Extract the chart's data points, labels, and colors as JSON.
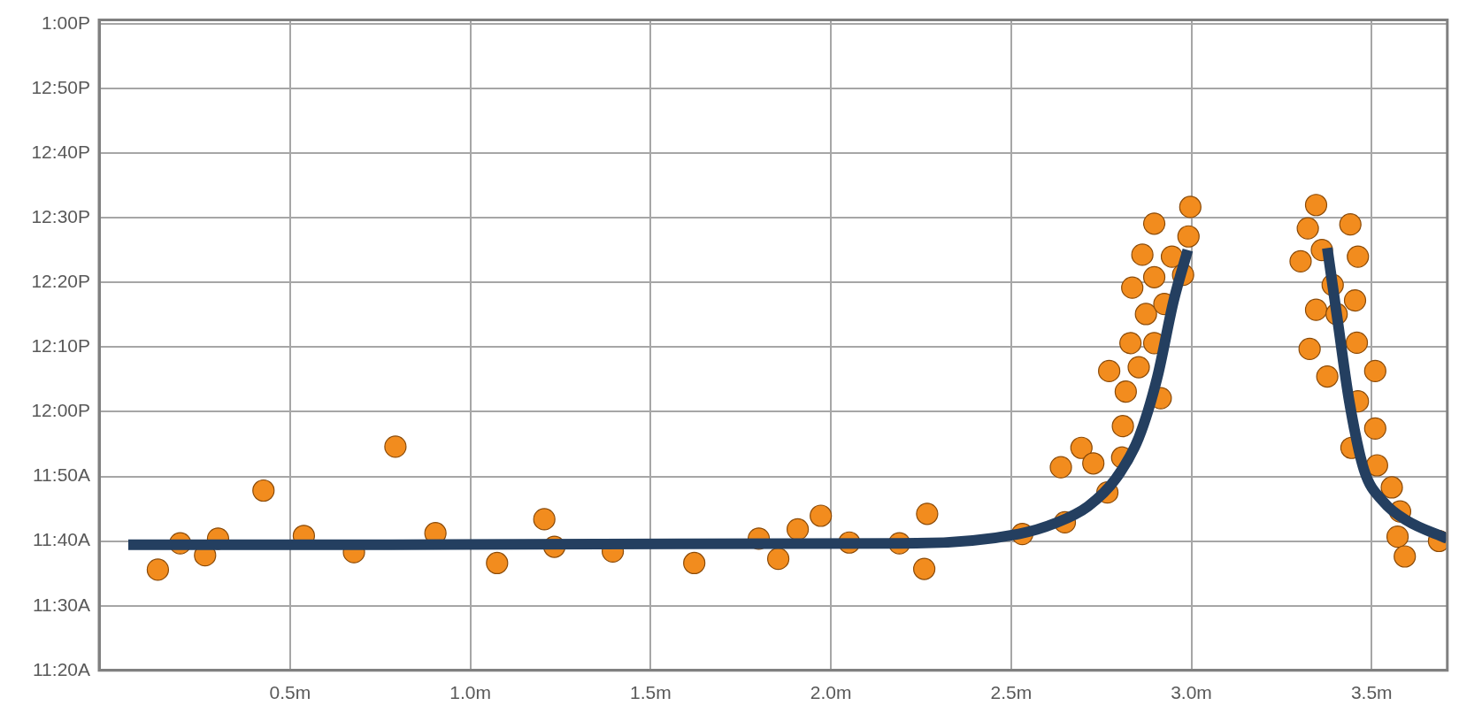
{
  "chart_data": {
    "type": "scatter",
    "xlim": [
      -0.03,
      3.71
    ],
    "ylim": [
      11.3333,
      13.01
    ],
    "xticks": [
      {
        "value": 0.5,
        "label": "0.5m"
      },
      {
        "value": 1,
        "label": "1.0m"
      },
      {
        "value": 1.5,
        "label": "1.5m"
      },
      {
        "value": 2,
        "label": "2.0m"
      },
      {
        "value": 2.5,
        "label": "2.5m"
      },
      {
        "value": 3,
        "label": "3.0m"
      },
      {
        "value": 3.5,
        "label": "3.5m"
      }
    ],
    "yticks": [
      {
        "value": 11.3333,
        "label": "11:20A"
      },
      {
        "value": 11.5,
        "label": "11:30A"
      },
      {
        "value": 11.6667,
        "label": "11:40A"
      },
      {
        "value": 11.8333,
        "label": "11:50A"
      },
      {
        "value": 12,
        "label": "12:00P"
      },
      {
        "value": 12.1667,
        "label": "12:10P"
      },
      {
        "value": 12.3333,
        "label": "12:20P"
      },
      {
        "value": 12.5,
        "label": "12:30P"
      },
      {
        "value": 12.6667,
        "label": "12:40P"
      },
      {
        "value": 12.8333,
        "label": "12:50P"
      },
      {
        "value": 13,
        "label": "1:00P"
      }
    ],
    "grid": true,
    "legend": false,
    "series": [
      {
        "marker": "circle",
        "color": "#f28c1e",
        "x": [
          0.133,
          0.195,
          0.264,
          0.3,
          0.426,
          0.538,
          0.677,
          0.792,
          0.903,
          1.074,
          1.205,
          1.233,
          1.395,
          1.621,
          1.8,
          1.854,
          1.908,
          1.972,
          2.051,
          2.19,
          2.267,
          2.259,
          2.531,
          2.638,
          2.649,
          2.695,
          2.728,
          2.767,
          2.772,
          2.808,
          2.81,
          2.818,
          2.831,
          2.836,
          2.854,
          2.864,
          2.874,
          2.897,
          2.897,
          2.897,
          2.915,
          2.925,
          2.946,
          2.977,
          2.997,
          2.992,
          3.346,
          3.323,
          3.303,
          3.362,
          3.441,
          3.462,
          3.346,
          3.392,
          3.403,
          3.454,
          3.328,
          3.459,
          3.377,
          3.51,
          3.462,
          3.51,
          3.444,
          3.515,
          3.556,
          3.579,
          3.572,
          3.592,
          3.687
        ],
        "values": [
          11.593,
          11.661,
          11.63,
          11.673,
          11.797,
          11.68,
          11.638,
          11.91,
          11.687,
          11.61,
          11.723,
          11.652,
          11.64,
          11.61,
          11.673,
          11.621,
          11.697,
          11.732,
          11.663,
          11.661,
          11.737,
          11.595,
          11.685,
          11.857,
          11.715,
          11.907,
          11.867,
          11.792,
          12.105,
          11.882,
          11.963,
          12.052,
          12.177,
          12.32,
          12.115,
          12.405,
          12.252,
          12.485,
          12.347,
          12.177,
          12.035,
          12.278,
          12.4,
          12.353,
          12.528,
          12.452,
          12.533,
          12.473,
          12.388,
          12.417,
          12.483,
          12.4,
          12.263,
          12.327,
          12.252,
          12.287,
          12.162,
          12.178,
          12.091,
          12.105,
          12.027,
          11.957,
          11.907,
          11.862,
          11.805,
          11.743,
          11.678,
          11.627,
          11.667
        ]
      },
      {
        "type": "line",
        "marker": "none",
        "color": "#243f60",
        "x": [
          0.051,
          2.238,
          2.521,
          2.623,
          2.713,
          2.79,
          2.854,
          2.905,
          2.951,
          2.99
        ],
        "values": [
          11.657,
          11.661,
          11.685,
          11.713,
          11.756,
          11.827,
          11.933,
          12.087,
          12.287,
          12.417
        ]
      },
      {
        "type": "line",
        "marker": "none",
        "color": "#243f60",
        "x": [
          3.377,
          3.405,
          3.438,
          3.479,
          3.533,
          3.597,
          3.71
        ],
        "values": [
          12.422,
          12.24,
          12.027,
          11.85,
          11.768,
          11.72,
          11.673
        ]
      }
    ]
  }
}
